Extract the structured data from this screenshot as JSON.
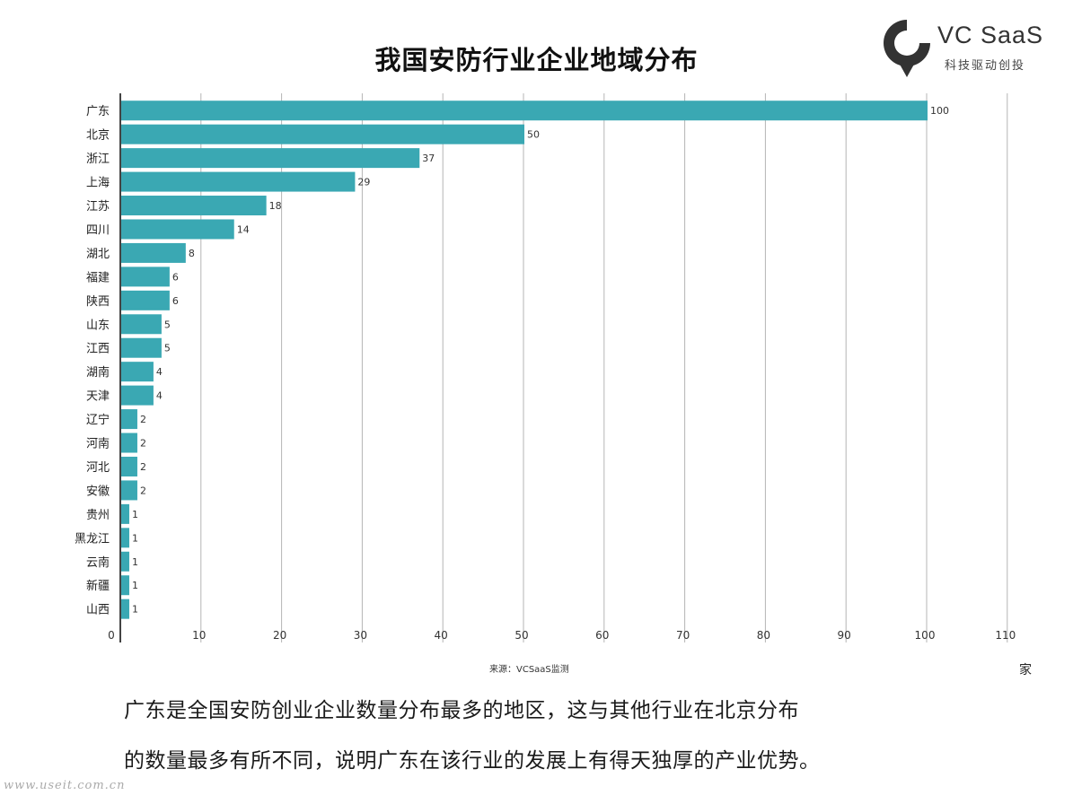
{
  "title": "我国安防行业企业地域分布",
  "logo": {
    "name": "VC SaaS",
    "tagline": "科技驱动创投"
  },
  "chart_data": {
    "type": "bar",
    "orientation": "horizontal",
    "title": "我国安防行业企业地域分布",
    "categories": [
      "广东",
      "北京",
      "浙江",
      "上海",
      "江苏",
      "四川",
      "湖北",
      "福建",
      "陕西",
      "山东",
      "江西",
      "湖南",
      "天津",
      "辽宁",
      "河南",
      "河北",
      "安徽",
      "贵州",
      "黑龙江",
      "云南",
      "新疆",
      "山西"
    ],
    "values": [
      100,
      50,
      37,
      29,
      18,
      14,
      8,
      6,
      6,
      5,
      5,
      4,
      4,
      2,
      2,
      2,
      2,
      1,
      1,
      1,
      1,
      1
    ],
    "xlim": [
      0,
      110
    ],
    "xticks": [
      0,
      10,
      20,
      30,
      40,
      50,
      60,
      70,
      80,
      90,
      100,
      110
    ],
    "xlabel": "家",
    "ylabel": "",
    "grid": "vertical",
    "bar_color": "#3aa8b3"
  },
  "source": "来源：VCSaaS监测",
  "unit": "家",
  "description": {
    "line1": "广东是全国安防创业企业数量分布最多的地区，这与其他行业在北京分布",
    "line2": "的数量最多有所不同，说明广东在该行业的发展上有得天独厚的产业优势。"
  },
  "watermark": "www.useit.com.cn"
}
